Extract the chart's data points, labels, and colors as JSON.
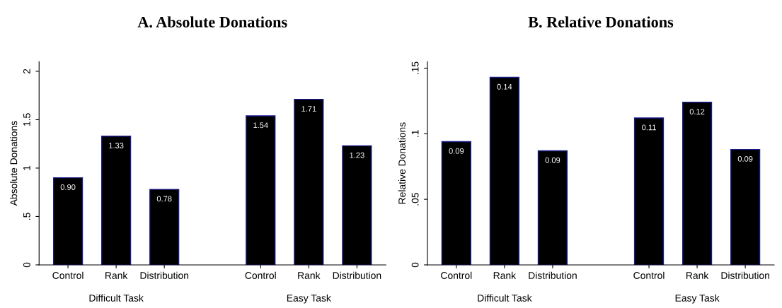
{
  "chart_data": [
    {
      "type": "bar",
      "title": "A. Absolute Donations",
      "ylabel": "Absolute Donations",
      "categories": [
        "Control",
        "Rank",
        "Distribution",
        null,
        "Control",
        "Rank",
        "Distribution"
      ],
      "values": [
        0.9,
        1.33,
        0.78,
        null,
        1.54,
        1.71,
        1.23
      ],
      "value_labels": [
        "0.90",
        "1.33",
        "0.78",
        null,
        "1.54",
        "1.71",
        "1.23"
      ],
      "color": "#000000",
      "annotations": [
        "Difficult Task",
        "Easy Task"
      ],
      "ylim": [
        0,
        2.1
      ],
      "yticks": [
        0,
        {
          "value": 0.5,
          "label": ".5"
        },
        1,
        1.5,
        2
      ],
      "grid": false,
      "legend": false
    },
    {
      "type": "bar",
      "title": "B. Relative Donations",
      "ylabel": "Relative Donations",
      "categories": [
        "Control",
        "Rank",
        "Distribution",
        null,
        "Control",
        "Rank",
        "Distribution"
      ],
      "values": [
        0.094,
        0.143,
        0.087,
        null,
        0.112,
        0.124,
        0.088
      ],
      "value_labels": [
        "0.09",
        "0.14",
        "0.09",
        null,
        "0.11",
        "0.12",
        "0.09"
      ],
      "color": "#000000",
      "annotations": [
        "Difficult Task",
        "Easy Task"
      ],
      "ylim": [
        0,
        0.155
      ],
      "yticks": [
        0,
        {
          "value": 0.05,
          "label": ".05"
        },
        {
          "value": 0.1,
          "label": ".1"
        },
        {
          "value": 0.15,
          "label": ".15"
        }
      ],
      "grid": false,
      "legend": false
    }
  ]
}
